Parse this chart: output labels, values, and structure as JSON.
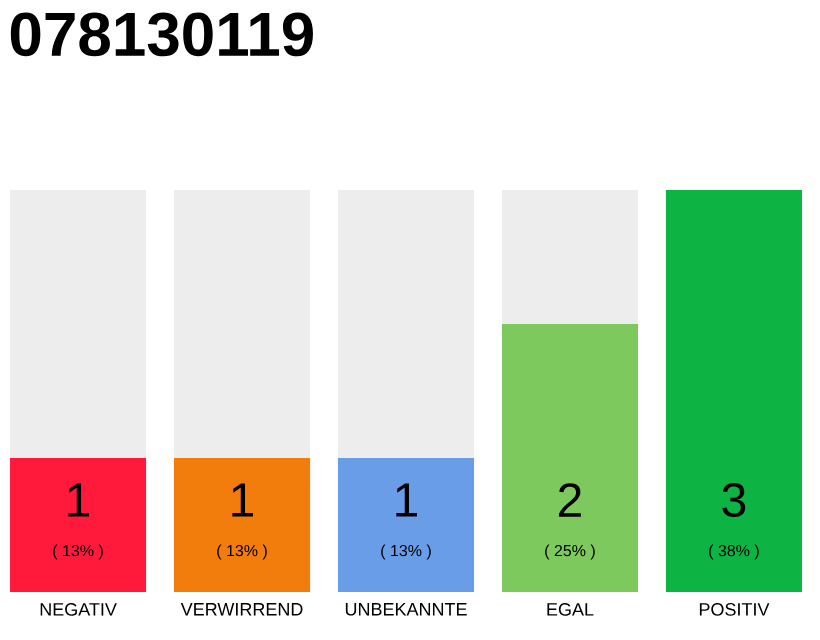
{
  "chart_data": {
    "type": "bar",
    "title": "078130119",
    "categories": [
      "NEGATIV",
      "VERWIRREND",
      "UNBEKANNTE",
      "EGAL",
      "POSITIV"
    ],
    "values": [
      1,
      1,
      1,
      2,
      3
    ],
    "colors": [
      "#ff1a3c",
      "#f27d0c",
      "#6a9de8",
      "#7dc95e",
      "#0db444"
    ],
    "value_labels": [
      "1",
      "1",
      "1",
      "2",
      "3"
    ],
    "annotations": [
      "( 13% )",
      "( 13% )",
      "( 13% )",
      "( 25% )",
      "( 38% )"
    ],
    "tick_labels": "x"
  }
}
